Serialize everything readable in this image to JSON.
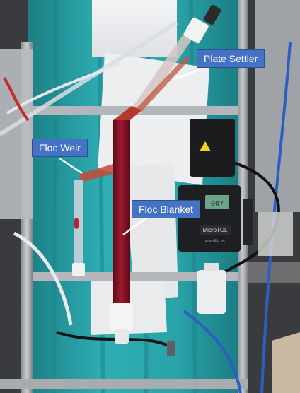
{
  "annotations": {
    "plate_settler": "Plate Settler",
    "floc_weir": "Floc Weir",
    "floc_blanket": "Floc Blanket"
  },
  "device": {
    "pump_brand": "MicroTOL",
    "pump_maker": "scientific, inc",
    "display_value": "007"
  },
  "colors": {
    "callout_fill": "#4472c4",
    "floc_red": "#8a1326",
    "curtain_teal": "#2aa8ad"
  }
}
